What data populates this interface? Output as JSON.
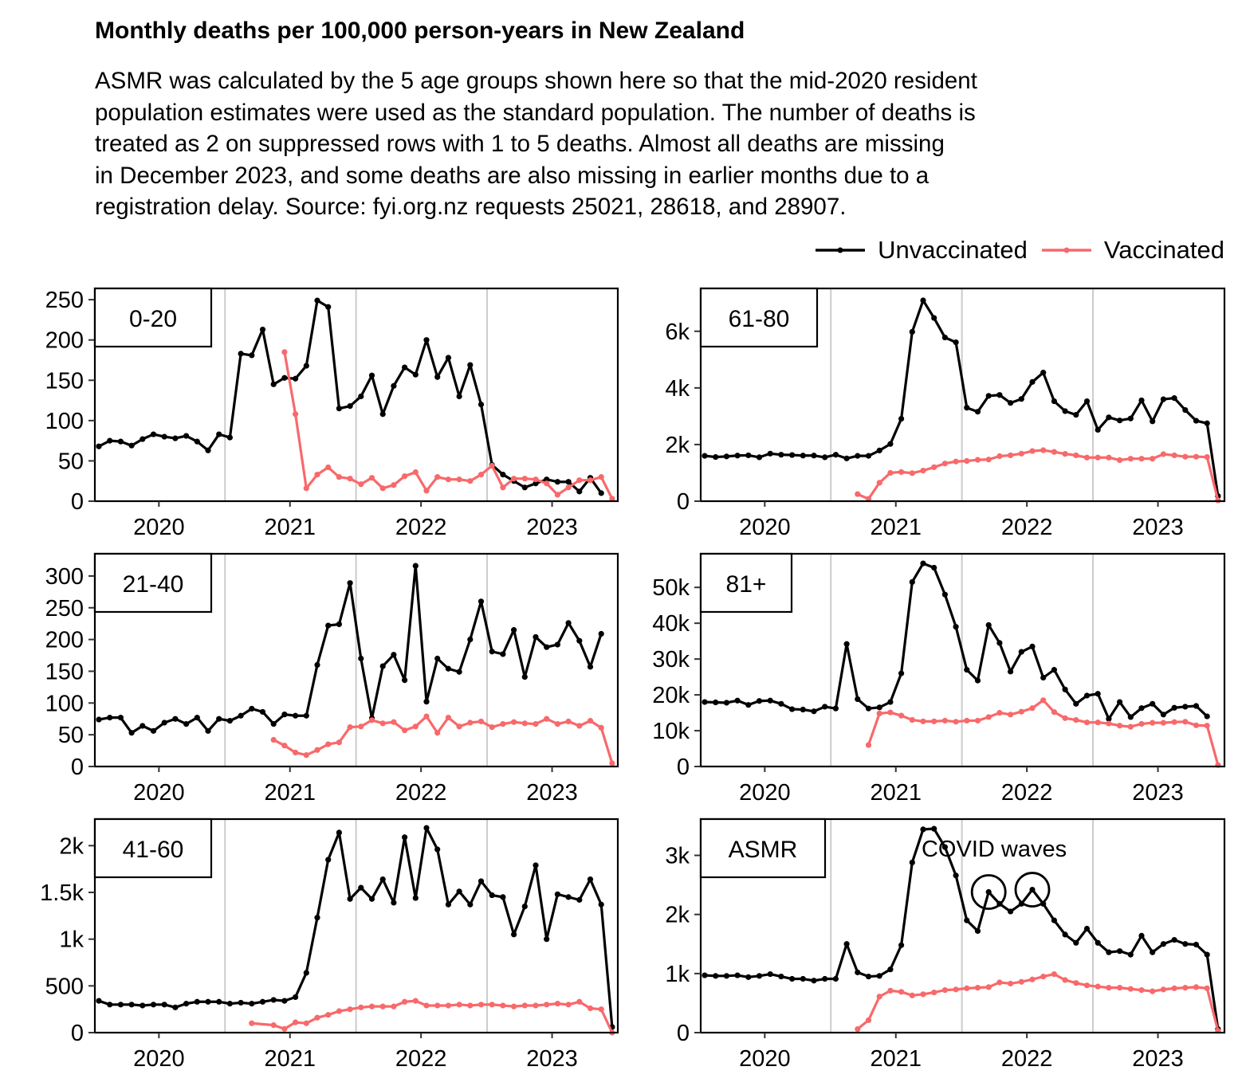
{
  "title": "Monthly deaths per 100,000 person-years in New Zealand",
  "subtitle_lines": [
    "ASMR was calculated by the 5 age groups shown here so that the mid-2020 resident",
    "population estimates were used as the standard population. The number of deaths is",
    "treated as 2 on suppressed rows with 1 to 5 deaths. Almost all deaths are missing",
    "in December 2023, and some deaths are also missing in earlier months due to a",
    "registration delay. Source: fyi.org.nz requests 25021, 28618, and 28907."
  ],
  "legend": [
    {
      "label": "Unvaccinated",
      "color": "#000000"
    },
    {
      "label": "Vaccinated",
      "color": "#f8696b"
    }
  ],
  "chart_data": {
    "type": "line",
    "x_start": "2020-01",
    "x_end": "2023-12",
    "x_ticks": [
      "2020",
      "2021",
      "2022",
      "2023"
    ],
    "grid": "vertical lines at each January from 2021",
    "legend_position": "top-right",
    "panels": [
      {
        "label": "0-20",
        "ylim": [
          0,
          260
        ],
        "yticks": [
          0,
          50,
          100,
          150,
          200,
          250
        ],
        "ytick_labels": [
          "0",
          "50",
          "100",
          "150",
          "200",
          "250"
        ],
        "series": [
          {
            "name": "Unvaccinated",
            "start_index": 0,
            "values": [
              68,
              75,
              74,
              69,
              77,
              83,
              80,
              78,
              81,
              74,
              63,
              83,
              79,
              183,
              181,
              213,
              145,
              153,
              152,
              168,
              249,
              241,
              115,
              118,
              130,
              156,
              108,
              143,
              166,
              157,
              200,
              154,
              178,
              130,
              169,
              120,
              45,
              33,
              25,
              17,
              22,
              27,
              24,
              24,
              12,
              29,
              10
            ]
          },
          {
            "name": "Vaccinated",
            "start_index": 17,
            "values": [
              185,
              108,
              16,
              33,
              42,
              30,
              28,
              21,
              29,
              16,
              20,
              31,
              36,
              13,
              30,
              27,
              27,
              25,
              33,
              44,
              17,
              28,
              28,
              27,
              22,
              8,
              17,
              26,
              26,
              30,
              3
            ]
          }
        ]
      },
      {
        "label": "61-80",
        "ylim": [
          0,
          7400
        ],
        "yticks": [
          0,
          2000,
          4000,
          6000
        ],
        "ytick_labels": [
          "0",
          "2k",
          "4k",
          "6k"
        ],
        "series": [
          {
            "name": "Unvaccinated",
            "start_index": 0,
            "values": [
              1600,
              1560,
              1580,
              1610,
              1620,
              1550,
              1680,
              1640,
              1630,
              1610,
              1610,
              1550,
              1640,
              1510,
              1600,
              1600,
              1790,
              2020,
              2910,
              5980,
              7090,
              6470,
              5780,
              5610,
              3300,
              3160,
              3720,
              3750,
              3470,
              3610,
              4210,
              4540,
              3530,
              3180,
              3050,
              3530,
              2520,
              2960,
              2850,
              2920,
              3560,
              2820,
              3600,
              3640,
              3220,
              2840,
              2750,
              180
            ]
          },
          {
            "name": "Vaccinated",
            "start_index": 14,
            "values": [
              250,
              80,
              650,
              1000,
              1030,
              990,
              1080,
              1200,
              1330,
              1400,
              1420,
              1460,
              1470,
              1590,
              1620,
              1680,
              1770,
              1800,
              1740,
              1670,
              1620,
              1540,
              1540,
              1540,
              1450,
              1500,
              1500,
              1500,
              1660,
              1620,
              1570,
              1570,
              1560,
              30
            ]
          }
        ]
      },
      {
        "label": "21-40",
        "ylim": [
          0,
          330
        ],
        "yticks": [
          0,
          50,
          100,
          150,
          200,
          250,
          300
        ],
        "ytick_labels": [
          "0",
          "50",
          "100",
          "150",
          "200",
          "250",
          "300"
        ],
        "series": [
          {
            "name": "Unvaccinated",
            "start_index": 0,
            "values": [
              74,
              77,
              77,
              53,
              64,
              56,
              69,
              75,
              67,
              77,
              56,
              75,
              72,
              80,
              91,
              86,
              67,
              82,
              80,
              80,
              160,
              222,
              224,
              289,
              170,
              76,
              158,
              176,
              136,
              316,
              102,
              170,
              154,
              149,
              200,
              260,
              181,
              177,
              215,
              141,
              204,
              188,
              192,
              226,
              198,
              157,
              209
            ]
          },
          {
            "name": "Vaccinated",
            "start_index": 16,
            "values": [
              42,
              33,
              22,
              18,
              26,
              35,
              38,
              62,
              63,
              73,
              68,
              70,
              57,
              63,
              79,
              53,
              77,
              63,
              69,
              71,
              62,
              67,
              70,
              68,
              67,
              75,
              67,
              71,
              64,
              72,
              61,
              5
            ]
          }
        ]
      },
      {
        "label": "81+",
        "ylim": [
          0,
          58500
        ],
        "yticks": [
          0,
          10000,
          20000,
          30000,
          40000,
          50000
        ],
        "ytick_labels": [
          "0",
          "10k",
          "20k",
          "30k",
          "40k",
          "50k"
        ],
        "series": [
          {
            "name": "Unvaccinated",
            "start_index": 0,
            "values": [
              18000,
              17900,
              17800,
              18400,
              17200,
              18300,
              18400,
              17500,
              16000,
              15900,
              15400,
              16700,
              16200,
              34200,
              18800,
              16200,
              16500,
              18000,
              26000,
              51500,
              56700,
              55500,
              48000,
              39000,
              27000,
              24000,
              39500,
              34500,
              26500,
              32000,
              33500,
              24800,
              27000,
              21500,
              17500,
              19800,
              20300,
              13300,
              18000,
              13800,
              16300,
              17500,
              14500,
              16400,
              16700,
              16900,
              14000
            ]
          },
          {
            "name": "Vaccinated",
            "start_index": 15,
            "values": [
              6000,
              14800,
              15100,
              14200,
              13000,
              12600,
              12600,
              12800,
              12500,
              12800,
              12800,
              13800,
              15000,
              14500,
              15300,
              16300,
              18500,
              15200,
              13500,
              13000,
              12300,
              12300,
              12000,
              11400,
              11100,
              11900,
              12200,
              12200,
              12400,
              12500,
              11500,
              11400,
              400
            ]
          }
        ]
      },
      {
        "label": "41-60",
        "ylim": [
          0,
          2250
        ],
        "yticks": [
          0,
          500,
          1000,
          1500,
          2000
        ],
        "ytick_labels": [
          "0",
          "500",
          "1k",
          "1.5k",
          "2k"
        ],
        "series": [
          {
            "name": "Unvaccinated",
            "start_index": 0,
            "values": [
              340,
              300,
              300,
              300,
              290,
              300,
              300,
              270,
              310,
              330,
              330,
              330,
              310,
              320,
              310,
              330,
              350,
              340,
              380,
              640,
              1230,
              1850,
              2140,
              1430,
              1550,
              1430,
              1640,
              1390,
              2090,
              1440,
              2190,
              1960,
              1370,
              1510,
              1370,
              1620,
              1470,
              1450,
              1050,
              1350,
              1790,
              1000,
              1480,
              1450,
              1420,
              1640,
              1370,
              60
            ]
          },
          {
            "name": "Vaccinated",
            "start_index": 14,
            "values": [
              100,
              null,
              80,
              40,
              110,
              100,
              160,
              190,
              230,
              250,
              270,
              280,
              280,
              280,
              330,
              340,
              290,
              290,
              290,
              300,
              290,
              300,
              300,
              290,
              280,
              290,
              290,
              300,
              310,
              300,
              330,
              260,
              250,
              0
            ]
          }
        ]
      },
      {
        "label": "ASMR",
        "ylim": [
          0,
          3560
        ],
        "yticks": [
          0,
          1000,
          2000,
          3000
        ],
        "ytick_labels": [
          "0",
          "1k",
          "2k",
          "3k"
        ],
        "annotation": {
          "text": "COVID waves",
          "circled_months": [
            "2022-03",
            "2022-07"
          ]
        },
        "series": [
          {
            "name": "Unvaccinated",
            "start_index": 0,
            "values": [
              970,
              960,
              960,
              970,
              940,
              960,
              990,
              950,
              910,
              910,
              880,
              910,
              910,
              1500,
              1020,
              950,
              960,
              1070,
              1480,
              2880,
              3440,
              3450,
              3140,
              2660,
              1900,
              1720,
              2380,
              2180,
              2050,
              2180,
              2420,
              2180,
              1900,
              1660,
              1520,
              1760,
              1520,
              1360,
              1380,
              1320,
              1640,
              1360,
              1500,
              1570,
              1500,
              1490,
              1320,
              60
            ]
          },
          {
            "name": "Vaccinated",
            "start_index": 14,
            "values": [
              60,
              210,
              610,
              710,
              690,
              630,
              650,
              680,
              720,
              730,
              750,
              760,
              770,
              850,
              830,
              860,
              900,
              950,
              990,
              890,
              840,
              800,
              780,
              760,
              760,
              740,
              720,
              700,
              730,
              750,
              760,
              770,
              750,
              30
            ]
          }
        ]
      }
    ]
  }
}
